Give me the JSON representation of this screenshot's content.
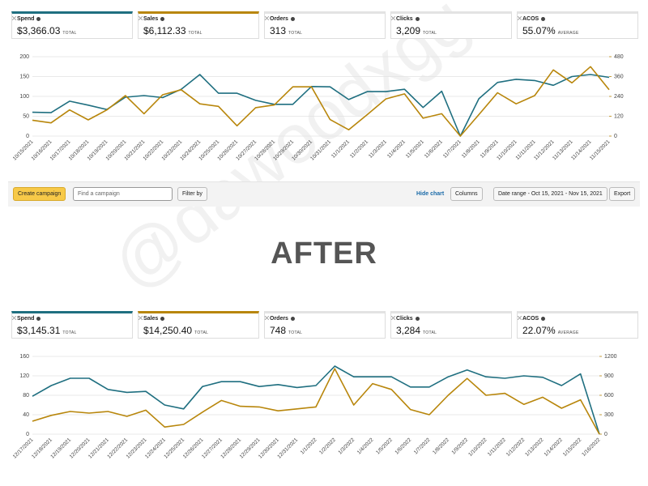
{
  "panels": [
    {
      "metrics": [
        {
          "label": "Spend",
          "value": "$3,366.03",
          "suffix": "TOTAL"
        },
        {
          "label": "Sales",
          "value": "$6,112.33",
          "suffix": "TOTAL"
        },
        {
          "label": "Orders",
          "value": "313",
          "suffix": "TOTAL"
        },
        {
          "label": "Clicks",
          "value": "3,209",
          "suffix": "TOTAL"
        },
        {
          "label": "ACOS",
          "value": "55.07%",
          "suffix": "AVERAGE"
        }
      ]
    },
    {
      "metrics": [
        {
          "label": "Spend",
          "value": "$3,145.31",
          "suffix": "TOTAL"
        },
        {
          "label": "Sales",
          "value": "$14,250.40",
          "suffix": "TOTAL"
        },
        {
          "label": "Orders",
          "value": "748",
          "suffix": "TOTAL"
        },
        {
          "label": "Clicks",
          "value": "3,284",
          "suffix": "TOTAL"
        },
        {
          "label": "ACOS",
          "value": "22.07%",
          "suffix": "AVERAGE"
        }
      ]
    }
  ],
  "toolbar": {
    "create": "Create campaign",
    "search": "Find a campaign",
    "filter": "Filter by",
    "hide": "Hide chart",
    "columns": "Columns",
    "date_range": "Date range - Oct 15, 2021 - Nov 15, 2021",
    "export": "Export"
  },
  "heading": "AFTER",
  "watermark": "@dawoodxgg",
  "chart_data": [
    {
      "type": "line",
      "categories": [
        "10/15/2021",
        "10/16/2021",
        "10/17/2021",
        "10/18/2021",
        "10/19/2021",
        "10/20/2021",
        "10/21/2021",
        "10/22/2021",
        "10/23/2021",
        "10/24/2021",
        "10/25/2021",
        "10/26/2021",
        "10/27/2021",
        "10/28/2021",
        "10/29/2021",
        "10/30/2021",
        "10/31/2021",
        "11/1/2021",
        "11/2/2021",
        "11/3/2021",
        "11/4/2021",
        "11/5/2021",
        "11/6/2021",
        "11/7/2021",
        "11/8/2021",
        "11/9/2021",
        "11/10/2021",
        "11/11/2021",
        "11/12/2021",
        "11/13/2021",
        "11/14/2021",
        "11/15/2021"
      ],
      "series": [
        {
          "color": "#1f6f80",
          "values": [
            60,
            59,
            88,
            78,
            67,
            98,
            102,
            97,
            118,
            155,
            108,
            108,
            90,
            80,
            80,
            125,
            124,
            92,
            112,
            112,
            118,
            72,
            113,
            0,
            94,
            135,
            143,
            140,
            128,
            150,
            155,
            148
          ]
        },
        {
          "color": "#b8860b",
          "axis": "y2",
          "values": [
            96,
            80,
            158,
            98,
            158,
            245,
            135,
            250,
            280,
            195,
            180,
            62,
            172,
            188,
            298,
            298,
            100,
            38,
            130,
            225,
            255,
            108,
            135,
            0,
            130,
            262,
            195,
            245,
            400,
            322,
            420,
            280
          ]
        }
      ],
      "ylim": [
        0,
        200
      ],
      "yticks": [
        0,
        50,
        100,
        150,
        200
      ],
      "y2lim": [
        0,
        480
      ],
      "y2ticks": [
        0,
        120,
        240,
        360,
        480
      ],
      "grid": true
    },
    {
      "type": "line",
      "categories": [
        "12/17/2021",
        "12/18/2021",
        "12/19/2021",
        "12/20/2021",
        "12/21/2021",
        "12/22/2021",
        "12/23/2021",
        "12/24/2021",
        "12/25/2021",
        "12/26/2021",
        "12/27/2021",
        "12/28/2021",
        "12/29/2021",
        "12/30/2021",
        "12/31/2021",
        "1/1/2022",
        "1/2/2022",
        "1/3/2022",
        "1/4/2022",
        "1/5/2022",
        "1/6/2022",
        "1/7/2022",
        "1/8/2022",
        "1/9/2022",
        "1/10/2022",
        "1/11/2022",
        "1/12/2022",
        "1/13/2022",
        "1/14/2022",
        "1/15/2022",
        "1/16/2022"
      ],
      "series": [
        {
          "color": "#1f6f80",
          "values": [
            78,
            100,
            115,
            115,
            92,
            86,
            88,
            60,
            52,
            98,
            108,
            108,
            98,
            102,
            96,
            100,
            140,
            118,
            118,
            118,
            97,
            97,
            118,
            132,
            118,
            115,
            120,
            117,
            100,
            124,
            0
          ]
        },
        {
          "color": "#b8860b",
          "axis": "y2",
          "values": [
            200,
            290,
            350,
            325,
            350,
            275,
            370,
            110,
            150,
            340,
            520,
            430,
            420,
            360,
            390,
            420,
            1010,
            450,
            780,
            690,
            380,
            300,
            600,
            860,
            600,
            630,
            460,
            570,
            400,
            530,
            0
          ]
        }
      ],
      "ylim": [
        0,
        160
      ],
      "yticks": [
        0,
        40,
        80,
        120,
        160
      ],
      "y2lim": [
        0,
        1200
      ],
      "y2ticks": [
        0,
        300,
        600,
        900,
        1200
      ],
      "grid": true
    }
  ]
}
